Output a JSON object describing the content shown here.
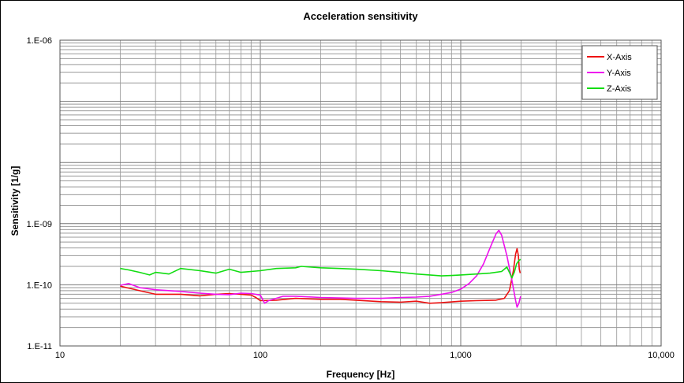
{
  "chart_data": {
    "type": "line",
    "title": "Acceleration sensitivity",
    "xlabel": "Frequency [Hz]",
    "ylabel": "Sensitivity [1/g]",
    "x_scale": "log",
    "y_scale": "log",
    "xlim": [
      10,
      10000
    ],
    "ylim": [
      1e-11,
      1e-06
    ],
    "x_tick_labels": [
      "10",
      "100",
      "1,000",
      "10,000"
    ],
    "y_tick_labels": [
      "1.E-11",
      "1.E-10",
      "1.E-09",
      "1.E-06"
    ],
    "grid": true,
    "legend_position": "top-right",
    "series": [
      {
        "name": "X-Axis",
        "color": "#ee1111",
        "points": [
          [
            20,
            9.5e-11
          ],
          [
            25,
            8e-11
          ],
          [
            30,
            7e-11
          ],
          [
            40,
            7e-11
          ],
          [
            50,
            6.6e-11
          ],
          [
            60,
            7e-11
          ],
          [
            70,
            7.2e-11
          ],
          [
            80,
            7e-11
          ],
          [
            90,
            6.8e-11
          ],
          [
            95,
            6.2e-11
          ],
          [
            100,
            5.5e-11
          ],
          [
            120,
            5.6e-11
          ],
          [
            150,
            6e-11
          ],
          [
            200,
            5.8e-11
          ],
          [
            250,
            5.8e-11
          ],
          [
            300,
            5.6e-11
          ],
          [
            400,
            5.3e-11
          ],
          [
            500,
            5.2e-11
          ],
          [
            600,
            5.4e-11
          ],
          [
            700,
            5e-11
          ],
          [
            800,
            5.1e-11
          ],
          [
            1000,
            5.4e-11
          ],
          [
            1200,
            5.5e-11
          ],
          [
            1500,
            5.6e-11
          ],
          [
            1650,
            6e-11
          ],
          [
            1750,
            8e-11
          ],
          [
            1830,
            1.7e-10
          ],
          [
            1880,
            3.2e-10
          ],
          [
            1910,
            3.9e-10
          ],
          [
            1940,
            3e-10
          ],
          [
            1960,
            1.8e-10
          ],
          [
            1980,
            1.55e-10
          ]
        ]
      },
      {
        "name": "Y-Axis",
        "color": "#ee11ee",
        "points": [
          [
            20,
            9.8e-11
          ],
          [
            22,
            1.05e-10
          ],
          [
            25,
            9e-11
          ],
          [
            30,
            8.3e-11
          ],
          [
            40,
            7.8e-11
          ],
          [
            50,
            7.3e-11
          ],
          [
            60,
            7e-11
          ],
          [
            70,
            6.9e-11
          ],
          [
            80,
            7.3e-11
          ],
          [
            90,
            7.2e-11
          ],
          [
            100,
            6.8e-11
          ],
          [
            105,
            5e-11
          ],
          [
            110,
            5.5e-11
          ],
          [
            130,
            6.5e-11
          ],
          [
            150,
            6.5e-11
          ],
          [
            200,
            6.2e-11
          ],
          [
            300,
            6e-11
          ],
          [
            400,
            6e-11
          ],
          [
            500,
            6.2e-11
          ],
          [
            600,
            6.3e-11
          ],
          [
            700,
            6.5e-11
          ],
          [
            800,
            7e-11
          ],
          [
            900,
            7.5e-11
          ],
          [
            1000,
            8.5e-11
          ],
          [
            1100,
            1.05e-10
          ],
          [
            1200,
            1.4e-10
          ],
          [
            1300,
            2.2e-10
          ],
          [
            1400,
            4e-10
          ],
          [
            1500,
            6.8e-10
          ],
          [
            1550,
            7.8e-10
          ],
          [
            1600,
            6.5e-10
          ],
          [
            1700,
            3e-10
          ],
          [
            1800,
            1.2e-10
          ],
          [
            1880,
            5.5e-11
          ],
          [
            1910,
            4.3e-11
          ],
          [
            1950,
            5e-11
          ],
          [
            1990,
            6.5e-11
          ]
        ]
      },
      {
        "name": "Z-Axis",
        "color": "#11dd11",
        "points": [
          [
            20,
            1.85e-10
          ],
          [
            22,
            1.75e-10
          ],
          [
            25,
            1.6e-10
          ],
          [
            28,
            1.45e-10
          ],
          [
            30,
            1.6e-10
          ],
          [
            35,
            1.5e-10
          ],
          [
            40,
            1.85e-10
          ],
          [
            50,
            1.7e-10
          ],
          [
            60,
            1.55e-10
          ],
          [
            70,
            1.8e-10
          ],
          [
            80,
            1.6e-10
          ],
          [
            100,
            1.7e-10
          ],
          [
            120,
            1.85e-10
          ],
          [
            150,
            1.9e-10
          ],
          [
            160,
            2e-10
          ],
          [
            200,
            1.9e-10
          ],
          [
            250,
            1.85e-10
          ],
          [
            300,
            1.8e-10
          ],
          [
            400,
            1.7e-10
          ],
          [
            500,
            1.6e-10
          ],
          [
            600,
            1.5e-10
          ],
          [
            700,
            1.45e-10
          ],
          [
            800,
            1.4e-10
          ],
          [
            900,
            1.42e-10
          ],
          [
            1000,
            1.45e-10
          ],
          [
            1200,
            1.5e-10
          ],
          [
            1400,
            1.55e-10
          ],
          [
            1600,
            1.65e-10
          ],
          [
            1700,
            1.95e-10
          ],
          [
            1750,
            1.6e-10
          ],
          [
            1800,
            1.3e-10
          ],
          [
            1850,
            1.6e-10
          ],
          [
            1900,
            2.2e-10
          ],
          [
            1950,
            2.5e-10
          ],
          [
            1990,
            2.6e-10
          ]
        ]
      }
    ]
  }
}
